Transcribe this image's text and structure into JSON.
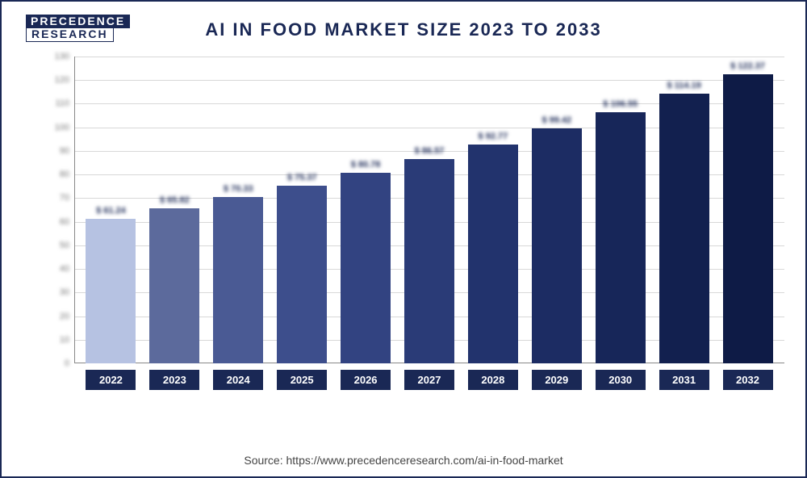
{
  "logo": {
    "line1": "PRECEDENCE",
    "line2": "RESEARCH"
  },
  "title": "AI IN FOOD MARKET SIZE 2023 TO 2033",
  "source": "Source: https://www.precedenceresearch.com/ai-in-food-market",
  "chart": {
    "type": "bar",
    "ylim": [
      0,
      130
    ],
    "ytick_step": 10,
    "grid_color": "#d8d8d8",
    "background_color": "#ffffff",
    "bars": [
      {
        "year": "2022",
        "value": 61.24,
        "label": "$ 61.24",
        "color": "#b6c2e2"
      },
      {
        "year": "2023",
        "value": 65.82,
        "label": "$ 65.82",
        "color": "#5c6a9c"
      },
      {
        "year": "2024",
        "value": 70.33,
        "label": "$ 70.33",
        "color": "#4a5a94"
      },
      {
        "year": "2025",
        "value": 75.37,
        "label": "$ 75.37",
        "color": "#3d4e8c"
      },
      {
        "year": "2026",
        "value": 80.78,
        "label": "$ 80.78",
        "color": "#324381"
      },
      {
        "year": "2027",
        "value": 86.57,
        "label": "$ 86.57",
        "color": "#2a3b77"
      },
      {
        "year": "2028",
        "value": 92.77,
        "label": "$ 92.77",
        "color": "#22336d"
      },
      {
        "year": "2029",
        "value": 99.42,
        "label": "$ 99.42",
        "color": "#1c2c63"
      },
      {
        "year": "2030",
        "value": 106.55,
        "label": "$ 106.55",
        "color": "#172659"
      },
      {
        "year": "2031",
        "value": 114.19,
        "label": "$ 114.19",
        "color": "#12204f"
      },
      {
        "year": "2032",
        "value": 122.37,
        "label": "$ 122.37",
        "color": "#0e1b46"
      }
    ]
  }
}
